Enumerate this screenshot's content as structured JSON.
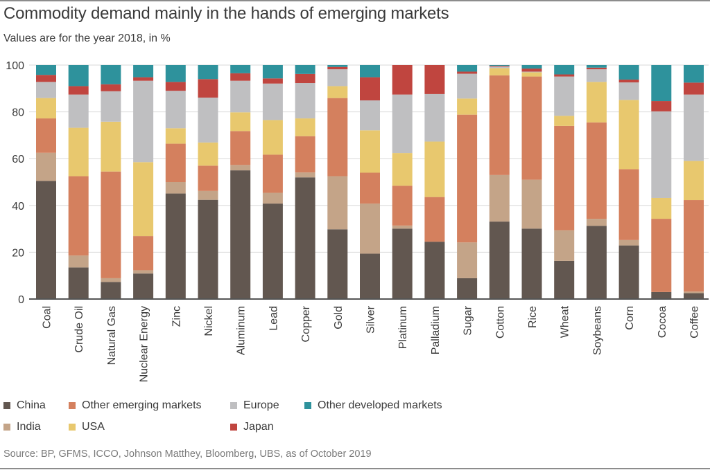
{
  "chart_data": {
    "type": "bar",
    "stacked": true,
    "title": "Commodity demand mainly in the hands of emerging markets",
    "subtitle": "Values are for the year 2018, in %",
    "xlabel": "",
    "ylabel": "",
    "ylim": [
      0,
      100
    ],
    "yticks": [
      "0",
      "20",
      "40",
      "60",
      "80",
      "100"
    ],
    "grid": true,
    "legend_position": "bottom",
    "categories": [
      "Coal",
      "Crude Oil",
      "Natural Gas",
      "Nuclear Energy",
      "Zinc",
      "Nickel",
      "Aluminum",
      "Lead",
      "Copper",
      "Gold",
      "Silver",
      "Platinum",
      "Palladium",
      "Sugar",
      "Cotton",
      "Rice",
      "Wheat",
      "Soybeans",
      "Corn",
      "Cocoa",
      "Coffee"
    ],
    "series": [
      {
        "name": "China",
        "color": "#625750",
        "values": [
          50.5,
          13.5,
          7.3,
          10.9,
          45.1,
          42.4,
          55.0,
          40.8,
          52.0,
          29.8,
          19.4,
          30.1,
          24.5,
          8.9,
          33.1,
          30.1,
          16.3,
          31.3,
          22.9,
          3.0,
          2.5
        ]
      },
      {
        "name": "India",
        "color": "#C4A488",
        "values": [
          12.0,
          5.1,
          1.6,
          1.4,
          4.9,
          3.8,
          2.3,
          4.6,
          2.1,
          22.7,
          21.4,
          1.3,
          0.0,
          15.3,
          19.9,
          20.9,
          13.1,
          3.0,
          2.3,
          0.0,
          0.7
        ]
      },
      {
        "name": "Other emerging markets",
        "color": "#D4805E",
        "values": [
          14.7,
          33.9,
          45.6,
          14.6,
          16.4,
          10.8,
          14.5,
          16.3,
          15.5,
          33.4,
          13.2,
          17.0,
          19.1,
          54.6,
          42.6,
          44.1,
          44.6,
          41.2,
          30.3,
          31.3,
          39.1
        ]
      },
      {
        "name": "USA",
        "color": "#E8C86E",
        "values": [
          8.7,
          20.7,
          21.3,
          31.6,
          6.6,
          9.9,
          8.0,
          14.8,
          7.6,
          5.1,
          18.1,
          14.0,
          23.7,
          6.9,
          3.1,
          1.8,
          4.3,
          17.3,
          29.6,
          8.9,
          16.7
        ]
      },
      {
        "name": "Europe",
        "color": "#BFBFC1",
        "values": [
          6.9,
          14.2,
          13.0,
          34.8,
          16.0,
          19.2,
          13.5,
          15.6,
          15.1,
          7.2,
          12.8,
          25.0,
          20.3,
          10.6,
          0.7,
          0.3,
          16.8,
          5.4,
          7.5,
          37.0,
          28.4
        ]
      },
      {
        "name": "Japan",
        "color": "#C0453F",
        "values": [
          3.0,
          3.6,
          3.0,
          1.5,
          3.8,
          7.9,
          3.2,
          2.2,
          3.9,
          1.0,
          9.9,
          12.6,
          12.4,
          0.9,
          0.3,
          1.3,
          0.9,
          0.7,
          1.2,
          4.4,
          5.1
        ]
      },
      {
        "name": "Other developed markets",
        "color": "#2E929C",
        "values": [
          4.2,
          9.0,
          8.2,
          5.2,
          7.2,
          6.0,
          3.5,
          5.7,
          3.8,
          0.8,
          5.2,
          0.0,
          0.0,
          2.8,
          0.3,
          1.5,
          4.0,
          1.1,
          6.2,
          15.4,
          7.5
        ]
      }
    ],
    "legend": [
      {
        "label": "China",
        "color": "#625750"
      },
      {
        "label": "Other emerging markets",
        "color": "#D4805E"
      },
      {
        "label": "Europe",
        "color": "#BFBFC1"
      },
      {
        "label": "Other developed markets",
        "color": "#2E929C"
      },
      {
        "label": "India",
        "color": "#C4A488"
      },
      {
        "label": "USA",
        "color": "#E8C86E"
      },
      {
        "label": "Japan",
        "color": "#C0453F"
      }
    ],
    "source": "Source: BP, GFMS, ICCO, Johnson Matthey, Bloomberg, UBS, as of October 2019"
  },
  "colors": {
    "grid": "#d9d9d9",
    "axis": "#555555",
    "tick_text": "#3a3a3a"
  }
}
